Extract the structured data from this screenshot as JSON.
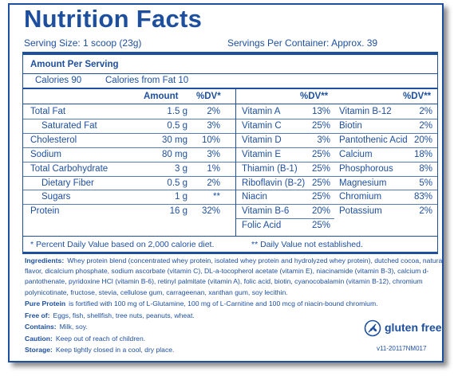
{
  "header": {
    "title": "Nutrition Facts",
    "serving_size": "Serving Size: 1 scoop (23g)",
    "servings_per_container": "Servings Per Container: Approx. 39"
  },
  "amount_per_serving": "Amount Per Serving",
  "calories": "Calories 90",
  "calories_from_fat": "Calories from Fat 10",
  "macros": {
    "amount_header": "Amount",
    "dv_header": "%DV*",
    "rows": [
      {
        "name": "Total Fat",
        "amount": "1.5 g",
        "dv": "2%",
        "sub": false
      },
      {
        "name": "Saturated Fat",
        "amount": "0.5 g",
        "dv": "3%",
        "sub": true
      },
      {
        "name": "Cholesterol",
        "amount": "30 mg",
        "dv": "10%",
        "sub": false
      },
      {
        "name": "Sodium",
        "amount": "80 mg",
        "dv": "3%",
        "sub": false
      },
      {
        "name": "Total Carbohydrate",
        "amount": "3 g",
        "dv": "1%",
        "sub": false
      },
      {
        "name": "Dietary Fiber",
        "amount": "0.5 g",
        "dv": "2%",
        "sub": true
      },
      {
        "name": "Sugars",
        "amount": "1 g",
        "dv": "**",
        "sub": true
      },
      {
        "name": "Protein",
        "amount": "16 g",
        "dv": "32%",
        "sub": false
      }
    ]
  },
  "vitamins": {
    "dv_header": "%DV**",
    "left": [
      [
        "Vitamin A",
        "13%"
      ],
      [
        "Vitamin C",
        "25%"
      ],
      [
        "Vitamin D",
        "3%"
      ],
      [
        "Vitamin E",
        "25%"
      ],
      [
        "Thiamin (B-1)",
        "25%"
      ],
      [
        "Riboflavin (B-2)",
        "25%"
      ],
      [
        "Niacin",
        "25%"
      ],
      [
        "Vitamin B-6",
        "20%"
      ],
      [
        "Folic Acid",
        "25%"
      ]
    ],
    "right": [
      [
        "Vitamin B-12",
        "2%"
      ],
      [
        "Biotin",
        "2%"
      ],
      [
        "Pantothenic Acid",
        "20%"
      ],
      [
        "Calcium",
        "18%"
      ],
      [
        "Phosphorous",
        "8%"
      ],
      [
        "Magnesium",
        "5%"
      ],
      [
        "Chromium",
        "83%"
      ],
      [
        "Potassium",
        "2%"
      ]
    ]
  },
  "footnotes": [
    "* Percent Daily Value based on 2,000 calorie diet.",
    "** Daily Value not established."
  ],
  "statements": [
    {
      "label": "Ingredients:",
      "text": "Whey protein blend (concentrated whey protein, isolated whey protein and hydrolyzed whey protein), dutched cocoa, natural flavor, dicalcium phosphate, sodium ascorbate (vitamin C), DL-a-tocopherol acetate (vitamin E), niacinamide (vitamin B-3), calcium d-pantothenate, pyridoxine HCl (vitamin B-6), retinyl palmitate (vitamin A), folic acid, biotin, cyanocobalamin (vitamin B-12), chromium polynicotinate, fructose, stevia, cellulose gum, carrageenan, xanthan gum, soy lecithin."
    },
    {
      "label": "Pure Protein",
      "text": "is fortified with 100 mg of L-Glutamine, 100 mg of L-Carnitine and 100 mcg of niacin-bound chromium."
    },
    {
      "label": "Free of:",
      "text": "Eggs, fish, shellfish, tree nuts, peanuts, wheat."
    },
    {
      "label": "Contains:",
      "text": "Milk, soy."
    },
    {
      "label": "Caution:",
      "text": "Keep out of reach of children."
    },
    {
      "label": "Storage:",
      "text": "Keep tightly closed in a cool, dry place."
    }
  ],
  "badge": "gluten free",
  "code": "v11-20117NM017"
}
